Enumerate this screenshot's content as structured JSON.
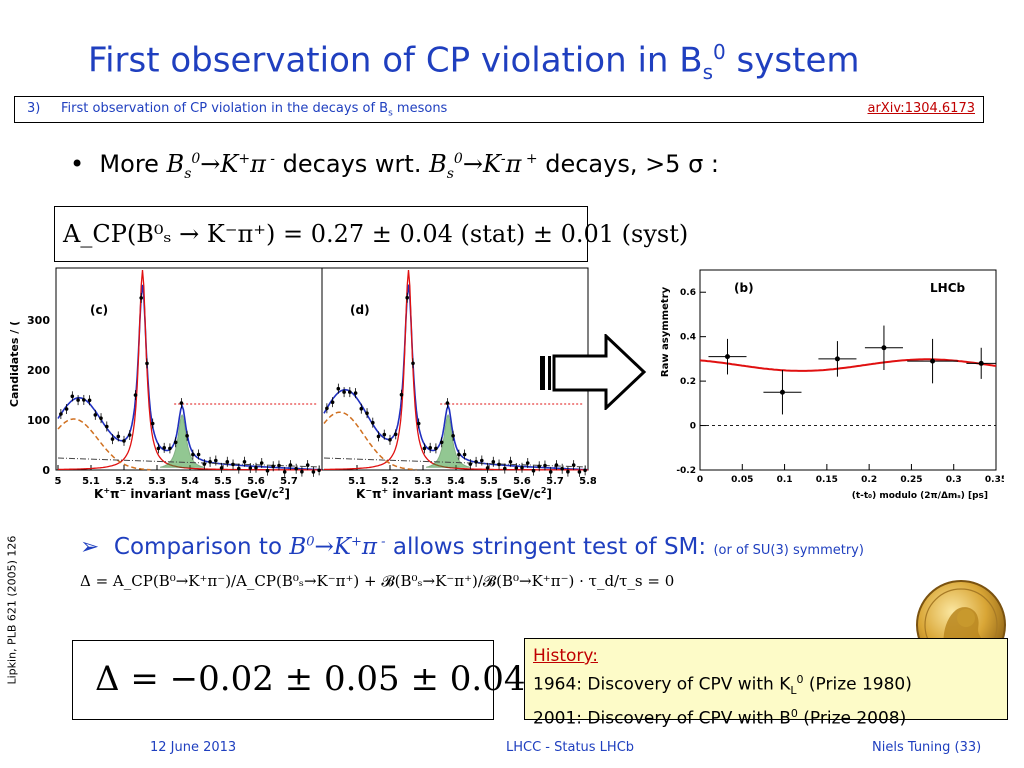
{
  "slide": {
    "title_main": "First observation of CP violation in B",
    "title_sub": "s",
    "title_sup": "0",
    "title_end": " system"
  },
  "reference": {
    "number": "3)",
    "text_main": "First observation of CP violation in the decays of B",
    "text_sub": "s",
    "text_end": " mesons",
    "link": "arXiv:1304.6173"
  },
  "bullet1": {
    "marker": "•",
    "t1": "More ",
    "b": "B",
    "s": "s",
    "zero": "0",
    "arrow_k": "→K",
    "plus": "+",
    "pi": "π",
    "minus": " -",
    "t2": " decays wrt. ",
    "arrow_k2": "→K",
    "minus2": "-",
    "plus2": " +",
    "t3": " decays, >5 σ :"
  },
  "acp_result": "A_CP(B⁰ₛ → K⁻π⁺) = 0.27 ± 0.04 (stat) ± 0.01 (syst)",
  "plot_cd": {
    "ylabel": "Candidates / (",
    "yticks": [
      "0",
      "100",
      "200",
      "300"
    ],
    "xticks": [
      "5",
      "5.1",
      "5.2",
      "5.3",
      "5.4",
      "5.5",
      "5.6",
      "5.7",
      "5.8"
    ],
    "panel_c": "(c)",
    "panel_d": "(d)",
    "xlabel_c_a": "K",
    "xlabel_c_b": "+",
    "xlabel_c_c": "π",
    "xlabel_c_d": "−",
    "xlabel_c_e": " invariant mass [GeV/c",
    "xlabel_c_f": "2",
    "xlabel_c_g": "]",
    "xlabel_d_b": "−",
    "xlabel_d_d": "+"
  },
  "chart_data": {
    "type": "scatter",
    "title": "(b)",
    "brand": "LHCb",
    "ylabel": "Raw asymmetry",
    "xlabel": "(t-t₀) modulo (2π/Δmₛ) [ps]",
    "xlim": [
      0,
      0.35
    ],
    "ylim": [
      -0.2,
      0.7
    ],
    "xticks": [
      "0",
      "0.05",
      "0.1",
      "0.15",
      "0.2",
      "0.25",
      "0.3",
      "0.35"
    ],
    "yticks": [
      "-0.2",
      "0",
      "0.2",
      "0.4",
      "0.6"
    ],
    "x": [
      0.0325,
      0.0975,
      0.1625,
      0.2175,
      0.275,
      0.3325
    ],
    "y": [
      0.31,
      0.15,
      0.3,
      0.35,
      0.29,
      0.28
    ],
    "yerr": [
      0.08,
      0.1,
      0.08,
      0.1,
      0.1,
      0.07
    ],
    "xerr": [
      0.0225,
      0.0225,
      0.0225,
      0.0225,
      0.03,
      0.0175
    ],
    "fit_offset": 0.272,
    "fit_amplitude": 0.026,
    "fit_min_x": 0.12
  },
  "bullet2": {
    "marker": "➢",
    "t1": "Comparison to ",
    "b": "B",
    "zero": "0",
    "arrow_k": "→K",
    "plus": "+",
    "pi": "π",
    "minus": " -",
    "t2": " allows stringent test of SM: ",
    "note": "(or of SU(3) symmetry)"
  },
  "delta_formula": "Δ = A_CP(B⁰→K⁺π⁻)/A_CP(B⁰ₛ→K⁻π⁺) + 𝓑(B⁰ₛ→K⁻π⁺)/𝓑(B⁰→K⁺π⁻) · τ_d/τ_s = 0",
  "delta_result": "Δ = −0.02 ± 0.05 ± 0.04",
  "history": {
    "heading": "History:",
    "line1_a": "1964: Discovery of CPV with K",
    "line1_sub": "L",
    "line1_sup": "0",
    "line1_b": " (Prize 1980)",
    "line2_a": "2001: Discovery of CPV with B",
    "line2_sup": "0",
    "line2_b": "  (Prize 2008)"
  },
  "side_citation": "Lipkin, PLB 621 (2005) 126",
  "footer": {
    "date": "12 June 2013",
    "center": "LHCC - Status LHCb",
    "right": "Niels Tuning (33)"
  },
  "colors": {
    "accent_blue": "#1f3fbf",
    "link_red": "#c00000",
    "history_bg": "#fdfbc8"
  }
}
